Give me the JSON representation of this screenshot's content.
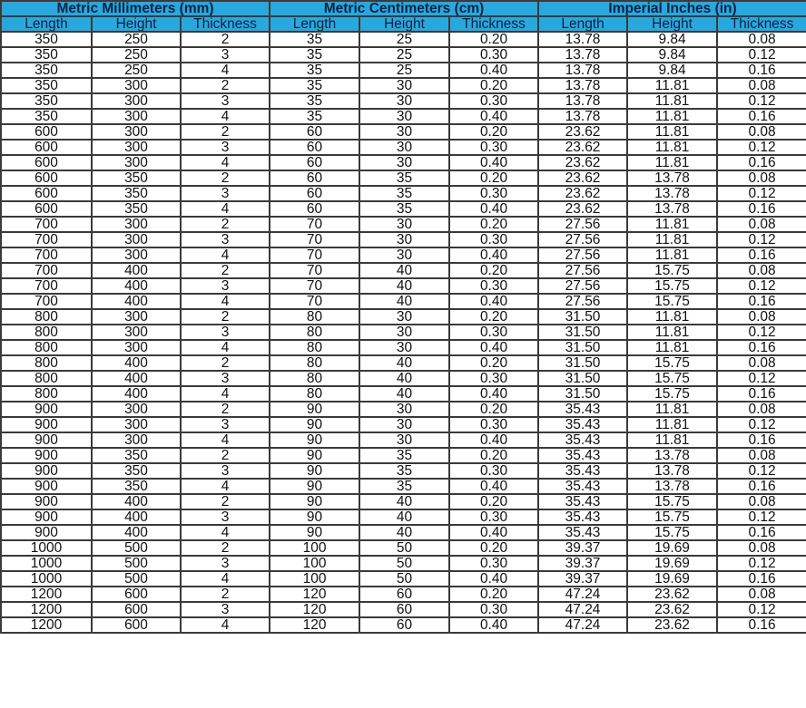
{
  "groups": [
    "Metric Millimeters (mm)",
    "Metric Centimeters (cm)",
    "Imperial Inches (in)"
  ],
  "subheaders": [
    "Length",
    "Height",
    "Thickness",
    "Length",
    "Height",
    "Thickness",
    "Length",
    "Height",
    "Thickness"
  ],
  "colors": {
    "header_bg": "#29a8e0",
    "header_text": "#0b2240",
    "border": "#3a3a3a"
  },
  "rows": [
    [
      "350",
      "250",
      "2",
      "35",
      "25",
      "0.20",
      "13.78",
      "9.84",
      "0.08"
    ],
    [
      "350",
      "250",
      "3",
      "35",
      "25",
      "0.30",
      "13.78",
      "9.84",
      "0.12"
    ],
    [
      "350",
      "250",
      "4",
      "35",
      "25",
      "0.40",
      "13.78",
      "9.84",
      "0.16"
    ],
    [
      "350",
      "300",
      "2",
      "35",
      "30",
      "0.20",
      "13.78",
      "11.81",
      "0.08"
    ],
    [
      "350",
      "300",
      "3",
      "35",
      "30",
      "0.30",
      "13.78",
      "11.81",
      "0.12"
    ],
    [
      "350",
      "300",
      "4",
      "35",
      "30",
      "0.40",
      "13.78",
      "11.81",
      "0.16"
    ],
    [
      "600",
      "300",
      "2",
      "60",
      "30",
      "0.20",
      "23.62",
      "11.81",
      "0.08"
    ],
    [
      "600",
      "300",
      "3",
      "60",
      "30",
      "0.30",
      "23.62",
      "11.81",
      "0.12"
    ],
    [
      "600",
      "300",
      "4",
      "60",
      "30",
      "0.40",
      "23.62",
      "11.81",
      "0.16"
    ],
    [
      "600",
      "350",
      "2",
      "60",
      "35",
      "0.20",
      "23.62",
      "13.78",
      "0.08"
    ],
    [
      "600",
      "350",
      "3",
      "60",
      "35",
      "0.30",
      "23.62",
      "13.78",
      "0.12"
    ],
    [
      "600",
      "350",
      "4",
      "60",
      "35",
      "0.40",
      "23.62",
      "13.78",
      "0.16"
    ],
    [
      "700",
      "300",
      "2",
      "70",
      "30",
      "0.20",
      "27.56",
      "11.81",
      "0.08"
    ],
    [
      "700",
      "300",
      "3",
      "70",
      "30",
      "0.30",
      "27.56",
      "11.81",
      "0.12"
    ],
    [
      "700",
      "300",
      "4",
      "70",
      "30",
      "0.40",
      "27.56",
      "11.81",
      "0.16"
    ],
    [
      "700",
      "400",
      "2",
      "70",
      "40",
      "0.20",
      "27.56",
      "15.75",
      "0.08"
    ],
    [
      "700",
      "400",
      "3",
      "70",
      "40",
      "0.30",
      "27.56",
      "15.75",
      "0.12"
    ],
    [
      "700",
      "400",
      "4",
      "70",
      "40",
      "0.40",
      "27.56",
      "15.75",
      "0.16"
    ],
    [
      "800",
      "300",
      "2",
      "80",
      "30",
      "0.20",
      "31.50",
      "11.81",
      "0.08"
    ],
    [
      "800",
      "300",
      "3",
      "80",
      "30",
      "0.30",
      "31.50",
      "11.81",
      "0.12"
    ],
    [
      "800",
      "300",
      "4",
      "80",
      "30",
      "0.40",
      "31.50",
      "11.81",
      "0.16"
    ],
    [
      "800",
      "400",
      "2",
      "80",
      "40",
      "0.20",
      "31.50",
      "15.75",
      "0.08"
    ],
    [
      "800",
      "400",
      "3",
      "80",
      "40",
      "0.30",
      "31.50",
      "15.75",
      "0.12"
    ],
    [
      "800",
      "400",
      "4",
      "80",
      "40",
      "0.40",
      "31.50",
      "15.75",
      "0.16"
    ],
    [
      "900",
      "300",
      "2",
      "90",
      "30",
      "0.20",
      "35.43",
      "11.81",
      "0.08"
    ],
    [
      "900",
      "300",
      "3",
      "90",
      "30",
      "0.30",
      "35.43",
      "11.81",
      "0.12"
    ],
    [
      "900",
      "300",
      "4",
      "90",
      "30",
      "0.40",
      "35.43",
      "11.81",
      "0.16"
    ],
    [
      "900",
      "350",
      "2",
      "90",
      "35",
      "0.20",
      "35.43",
      "13.78",
      "0.08"
    ],
    [
      "900",
      "350",
      "3",
      "90",
      "35",
      "0.30",
      "35.43",
      "13.78",
      "0.12"
    ],
    [
      "900",
      "350",
      "4",
      "90",
      "35",
      "0.40",
      "35.43",
      "13.78",
      "0.16"
    ],
    [
      "900",
      "400",
      "2",
      "90",
      "40",
      "0.20",
      "35.43",
      "15.75",
      "0.08"
    ],
    [
      "900",
      "400",
      "3",
      "90",
      "40",
      "0.30",
      "35.43",
      "15.75",
      "0.12"
    ],
    [
      "900",
      "400",
      "4",
      "90",
      "40",
      "0.40",
      "35.43",
      "15.75",
      "0.16"
    ],
    [
      "1000",
      "500",
      "2",
      "100",
      "50",
      "0.20",
      "39.37",
      "19.69",
      "0.08"
    ],
    [
      "1000",
      "500",
      "3",
      "100",
      "50",
      "0.30",
      "39.37",
      "19.69",
      "0.12"
    ],
    [
      "1000",
      "500",
      "4",
      "100",
      "50",
      "0.40",
      "39.37",
      "19.69",
      "0.16"
    ],
    [
      "1200",
      "600",
      "2",
      "120",
      "60",
      "0.20",
      "47.24",
      "23.62",
      "0.08"
    ],
    [
      "1200",
      "600",
      "3",
      "120",
      "60",
      "0.30",
      "47.24",
      "23.62",
      "0.12"
    ],
    [
      "1200",
      "600",
      "4",
      "120",
      "60",
      "0.40",
      "47.24",
      "23.62",
      "0.16"
    ]
  ]
}
